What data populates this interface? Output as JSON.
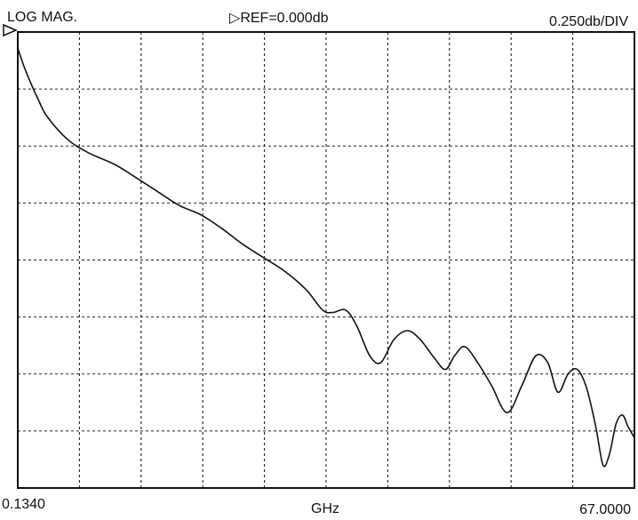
{
  "header": {
    "mode": "LOG MAG.",
    "reference": "REF=0.000db",
    "scale": "0.250db/DIV"
  },
  "footer": {
    "x_start": "0.1340",
    "x_unit": "GHz",
    "x_end": "67.0000"
  },
  "colors": {
    "trace": "#111111",
    "grid": "#222222",
    "background": "#ffffff"
  },
  "chart_data": {
    "type": "line",
    "title": "",
    "xlabel": "GHz",
    "ylabel": "",
    "xlim": [
      0.134,
      67.0
    ],
    "ylim": [
      -2.0,
      0.0
    ],
    "reference_db": 0.0,
    "db_per_div": 0.25,
    "x_divisions": 10,
    "y_divisions": 8,
    "grid": true,
    "series": [
      {
        "name": "",
        "x": [
          0.13,
          0.8,
          1.5,
          2.4,
          3.3,
          5.5,
          7.8,
          10.6,
          13.0,
          15.3,
          17.6,
          19.9,
          22.2,
          24.5,
          26.8,
          29.1,
          31.4,
          33.2,
          34.3,
          35.7,
          36.9,
          38.3,
          39.5,
          40.9,
          42.4,
          43.8,
          45.3,
          46.5,
          47.5,
          48.6,
          50.0,
          51.5,
          53.2,
          54.8,
          56.3,
          57.6,
          58.7,
          59.8,
          60.8,
          61.8,
          62.8,
          63.6,
          64.3,
          65.0,
          65.7,
          66.3,
          67.0
        ],
        "y": [
          -0.07,
          -0.15,
          -0.22,
          -0.3,
          -0.37,
          -0.47,
          -0.53,
          -0.58,
          -0.64,
          -0.7,
          -0.76,
          -0.8,
          -0.86,
          -0.93,
          -0.99,
          -1.05,
          -1.13,
          -1.22,
          -1.23,
          -1.22,
          -1.29,
          -1.42,
          -1.45,
          -1.35,
          -1.31,
          -1.35,
          -1.43,
          -1.48,
          -1.42,
          -1.38,
          -1.45,
          -1.55,
          -1.67,
          -1.55,
          -1.42,
          -1.45,
          -1.58,
          -1.5,
          -1.48,
          -1.56,
          -1.73,
          -1.9,
          -1.85,
          -1.72,
          -1.68,
          -1.73,
          -1.78
        ]
      }
    ]
  }
}
